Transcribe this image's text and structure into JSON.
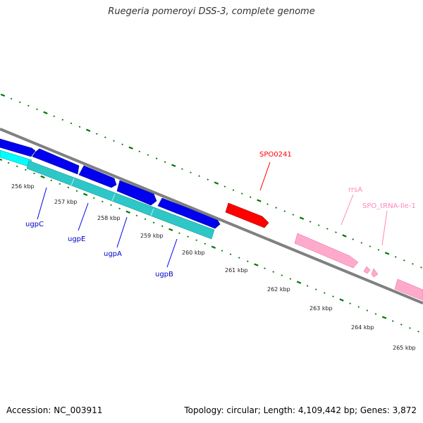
{
  "title": "Ruegeria pomeroyi DSS-3, complete genome",
  "footer": {
    "accession": "Accession: NC_003911",
    "topology": "Topology: circular; Length: 4,109,442 bp; Genes: 3,872"
  },
  "kbp_labels": [
    "256 kbp",
    "257 kbp",
    "258 kbp",
    "259 kbp",
    "260 kbp",
    "261 kbp",
    "262 kbp",
    "263 kbp",
    "264 kbp",
    "265 kbp"
  ],
  "genes": [
    {
      "name": "ugpC",
      "color": "#0000ff"
    },
    {
      "name": "ugpE",
      "color": "#0000ff"
    },
    {
      "name": "ugpA",
      "color": "#0000ff"
    },
    {
      "name": "ugpB",
      "color": "#0000ff"
    },
    {
      "name": "SPO0241",
      "color": "#ff0000"
    },
    {
      "name": "rrsA",
      "color": "#ff99cc"
    },
    {
      "name": "SPO_tRNA-Ile-1",
      "color": "#ff99cc"
    }
  ],
  "colors": {
    "backbone": "#808080",
    "tick": "#007700",
    "cds_track": "#0000ee",
    "cog_track": "#00dddd",
    "rrna": "#ffaacc"
  }
}
